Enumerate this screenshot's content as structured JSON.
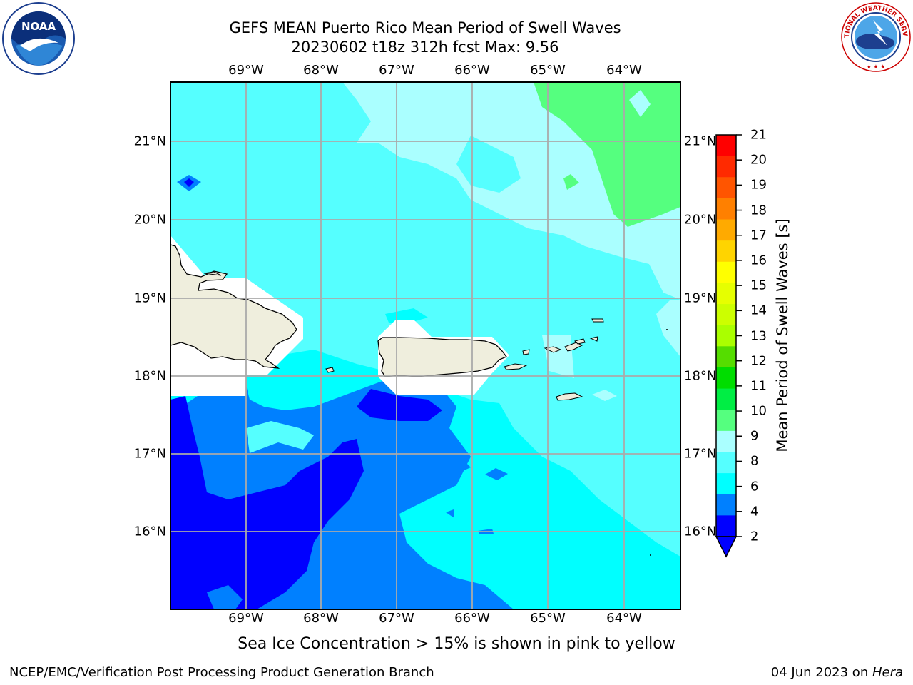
{
  "title": {
    "line1": "GEFS MEAN Puerto Rico Mean Period of Swell Waves",
    "line2": "20230602 t18z 312h fcst   Max: 9.56"
  },
  "logos": {
    "left_text": "NOAA",
    "left_ring": "NATIONAL OCEANIC AND ATMOSPHERIC ADMINISTRATION · U.S. DEPARTMENT OF COMMERCE",
    "right_ring": "NATIONAL WEATHER SERVICE"
  },
  "axes": {
    "lon_labels": [
      "69°W",
      "68°W",
      "67°W",
      "66°W",
      "65°W",
      "64°W"
    ],
    "lat_labels": [
      "21°N",
      "20°N",
      "19°N",
      "18°N",
      "17°N",
      "16°N"
    ]
  },
  "colorbar": {
    "label": "Mean Period of Swell Waves [s]",
    "ticks": [
      "21",
      "20",
      "19",
      "18",
      "17",
      "16",
      "15",
      "14",
      "13",
      "12",
      "11",
      "10",
      "9",
      "8",
      "6",
      "4",
      "2"
    ],
    "colors": [
      "#ff0000",
      "#ff2a00",
      "#ff5500",
      "#ff8000",
      "#ffaa00",
      "#ffd400",
      "#ffff00",
      "#e6ff00",
      "#ccff00",
      "#aaff00",
      "#55dd00",
      "#00dd00",
      "#00ee44",
      "#55ff7f",
      "#aaffff",
      "#55ffff",
      "#00ffff",
      "#0080ff",
      "#0000ff"
    ],
    "extend_color": "#0000ff"
  },
  "legend_note": "Sea Ice Concentration > 15% is shown in pink to yellow",
  "footer": {
    "left": "NCEP/EMC/Verification Post Processing Product Generation Branch",
    "date": "04 Jun 2023 on ",
    "host": "Hera"
  },
  "colors": {
    "deep_blue": "#0000ff",
    "blue": "#0080ff",
    "cyan": "#00ffff",
    "light_cyan": "#55ffff",
    "pale_cyan": "#aaffff",
    "green": "#55ff7f",
    "land": "#efeedd",
    "grid": "#aaaaaa"
  }
}
